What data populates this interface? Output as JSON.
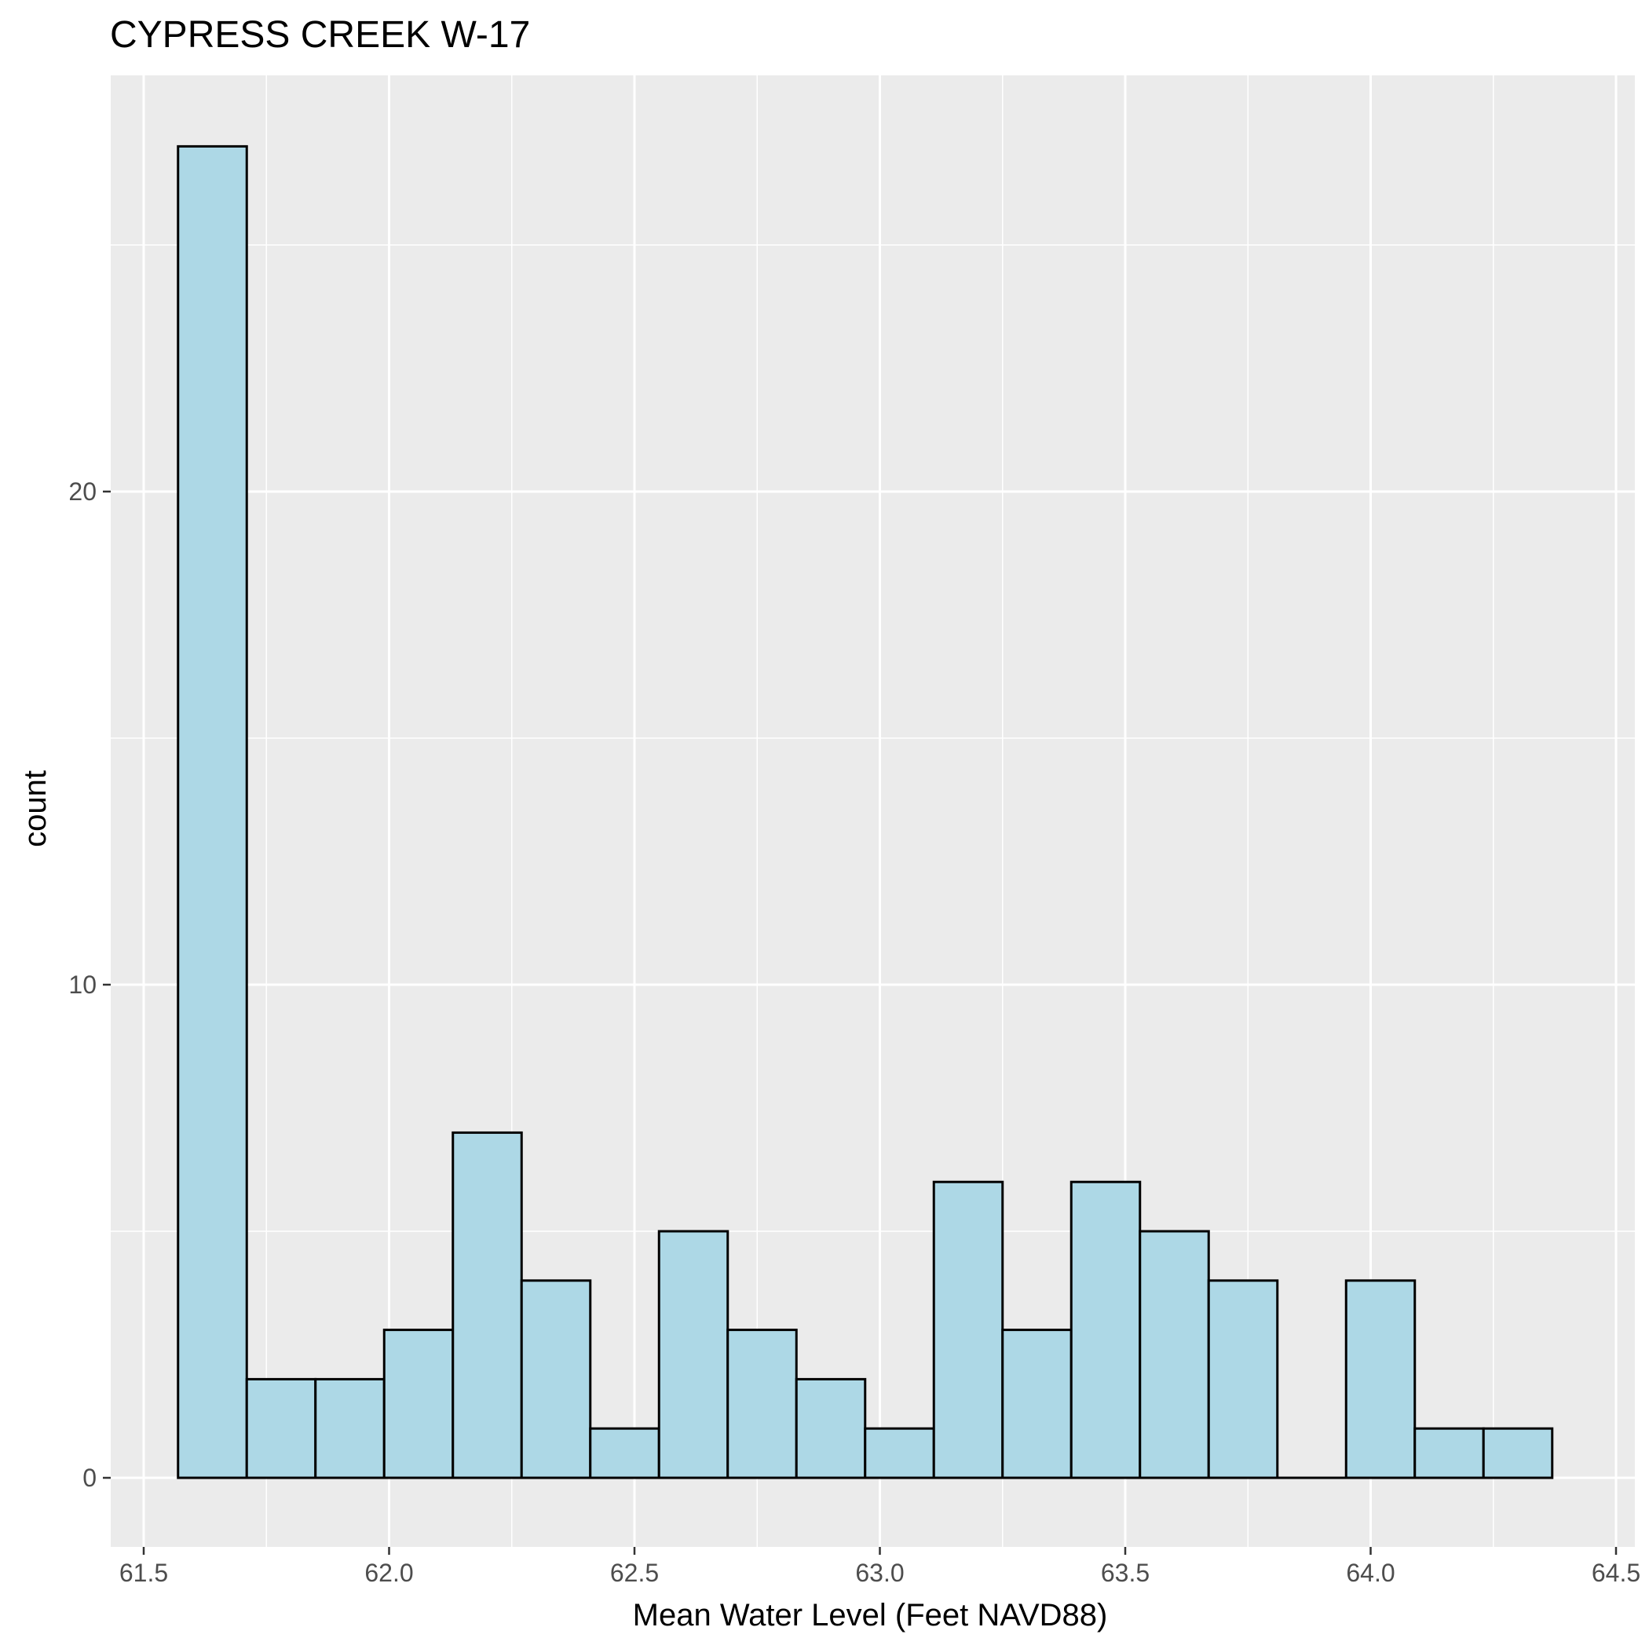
{
  "chart_data": {
    "type": "bar",
    "title": "CYPRESS CREEK W-17",
    "xlabel": "Mean Water Level (Feet NAVD88)",
    "ylabel": "count",
    "xlim": [
      61.5,
      64.5
    ],
    "ylim": [
      0,
      27
    ],
    "x_ticks": [
      "61.5",
      "62.0",
      "62.5",
      "63.0",
      "63.5",
      "64.0",
      "64.5"
    ],
    "y_ticks": [
      "0",
      "10",
      "20"
    ],
    "bins": [
      {
        "x0": 61.57,
        "x1": 61.71,
        "count": 27
      },
      {
        "x0": 61.71,
        "x1": 61.85,
        "count": 2
      },
      {
        "x0": 61.85,
        "x1": 61.99,
        "count": 2
      },
      {
        "x0": 61.99,
        "x1": 62.13,
        "count": 3
      },
      {
        "x0": 62.13,
        "x1": 62.27,
        "count": 7
      },
      {
        "x0": 62.27,
        "x1": 62.41,
        "count": 4
      },
      {
        "x0": 62.41,
        "x1": 62.55,
        "count": 1
      },
      {
        "x0": 62.55,
        "x1": 62.69,
        "count": 5
      },
      {
        "x0": 62.69,
        "x1": 62.83,
        "count": 3
      },
      {
        "x0": 62.83,
        "x1": 62.97,
        "count": 2
      },
      {
        "x0": 62.97,
        "x1": 63.11,
        "count": 1
      },
      {
        "x0": 63.11,
        "x1": 63.25,
        "count": 6
      },
      {
        "x0": 63.25,
        "x1": 63.39,
        "count": 3
      },
      {
        "x0": 63.39,
        "x1": 63.53,
        "count": 6
      },
      {
        "x0": 63.53,
        "x1": 63.67,
        "count": 5
      },
      {
        "x0": 63.67,
        "x1": 63.81,
        "count": 4
      },
      {
        "x0": 63.81,
        "x1": 63.95,
        "count": 0
      },
      {
        "x0": 63.95,
        "x1": 64.09,
        "count": 4
      },
      {
        "x0": 64.09,
        "x1": 64.23,
        "count": 1
      },
      {
        "x0": 64.23,
        "x1": 64.37,
        "count": 1
      }
    ],
    "bar_fill": "#add8e6",
    "bar_stroke": "#000000",
    "panel_background": "#ebebeb",
    "grid": true,
    "legend": "none"
  }
}
